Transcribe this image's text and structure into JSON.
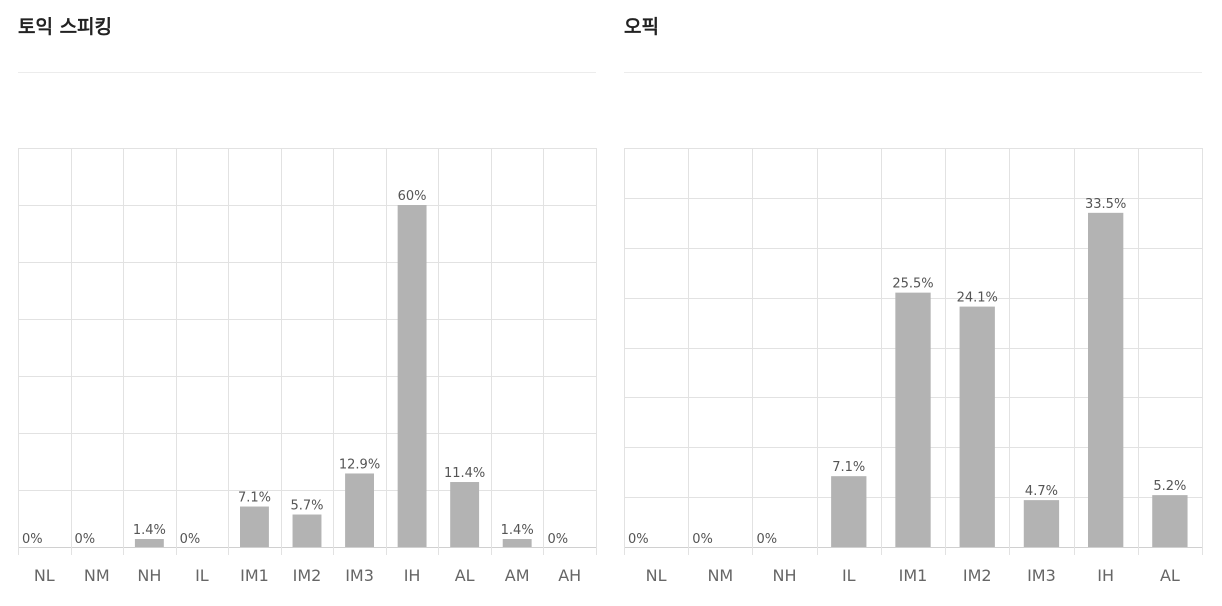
{
  "panels": [
    {
      "title": "토익 스피킹",
      "chart_data": {
        "type": "bar",
        "categories": [
          "NL",
          "NM",
          "NH",
          "IL",
          "IM1",
          "IM2",
          "IM3",
          "IH",
          "AL",
          "AM",
          "AH"
        ],
        "values": [
          0,
          0,
          1.4,
          0,
          7.1,
          5.7,
          12.9,
          60,
          11.4,
          1.4,
          0
        ],
        "value_labels": [
          "0%",
          "0%",
          "1.4%",
          "0%",
          "7.1%",
          "5.7%",
          "12.9%",
          "60%",
          "11.4%",
          "1.4%",
          "0%"
        ],
        "ylim": [
          0,
          70
        ],
        "y_gridlines": 7,
        "bar_color": "#b3b3b3",
        "grid": true,
        "legend": "none"
      }
    },
    {
      "title": "오픽",
      "chart_data": {
        "type": "bar",
        "categories": [
          "NL",
          "NM",
          "NH",
          "IL",
          "IM1",
          "IM2",
          "IM3",
          "IH",
          "AL"
        ],
        "values": [
          0,
          0,
          0,
          7.1,
          25.5,
          24.1,
          4.7,
          33.5,
          5.2
        ],
        "value_labels": [
          "0%",
          "0%",
          "0%",
          "7.1%",
          "25.5%",
          "24.1%",
          "4.7%",
          "33.5%",
          "5.2%"
        ],
        "ylim": [
          0,
          40
        ],
        "y_gridlines": 8,
        "bar_color": "#b3b3b3",
        "grid": true,
        "legend": "none"
      }
    }
  ]
}
